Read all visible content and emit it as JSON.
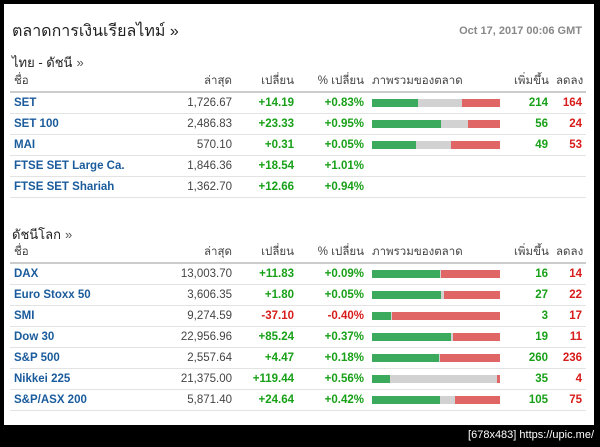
{
  "header": {
    "title": "ตลาดการเงินเรียลไทม์ »",
    "date": "Oct 17, 2017 00:06 GMT"
  },
  "thai": {
    "title": "ไทย - ดัชนี",
    "chev": "»",
    "columns": [
      "ชื่อ",
      "ล่าสุด",
      "เปลี่ยน",
      "% เปลี่ยน",
      "ภาพรวมของตลาด",
      "เพิ่มขึ้น",
      "ลดลง"
    ],
    "rows": [
      {
        "name": "SET",
        "last": "1,726.67",
        "change": "+14.19",
        "pct": "+0.83%",
        "advances": "214",
        "declines": "164",
        "breadth": {
          "up": 0.36,
          "unch": 0.34,
          "down": 0.3
        }
      },
      {
        "name": "SET 100",
        "last": "2,486.83",
        "change": "+23.33",
        "pct": "+0.95%",
        "advances": "56",
        "declines": "24",
        "breadth": {
          "up": 0.54,
          "unch": 0.21,
          "down": 0.25
        }
      },
      {
        "name": "MAI",
        "last": "570.10",
        "change": "+0.31",
        "pct": "+0.05%",
        "advances": "49",
        "declines": "53",
        "breadth": {
          "up": 0.34,
          "unch": 0.28,
          "down": 0.38
        }
      },
      {
        "name": "FTSE SET Large Ca.",
        "last": "1,846.36",
        "change": "+18.54",
        "pct": "+1.01%",
        "advances": "",
        "declines": "",
        "breadth": null
      },
      {
        "name": "FTSE SET Shariah",
        "last": "1,362.70",
        "change": "+12.66",
        "pct": "+0.94%",
        "advances": "",
        "declines": "",
        "breadth": null
      }
    ]
  },
  "world": {
    "title": "ดัชนีโลก",
    "chev": "»",
    "columns": [
      "ชื่อ",
      "ล่าสุด",
      "เปลี่ยน",
      "% เปลี่ยน",
      "ภาพรวมของตลาด",
      "เพิ่มขึ้น",
      "ลดลง"
    ],
    "rows": [
      {
        "name": "DAX",
        "last": "13,003.70",
        "change": "+11.83",
        "pct": "+0.09%",
        "advances": "16",
        "declines": "14",
        "breadth": {
          "up": 0.53,
          "unch": 0.01,
          "down": 0.46
        }
      },
      {
        "name": "Euro Stoxx 50",
        "last": "3,606.35",
        "change": "+1.80",
        "pct": "+0.05%",
        "advances": "27",
        "declines": "22",
        "breadth": {
          "up": 0.54,
          "unch": 0.02,
          "down": 0.44
        }
      },
      {
        "name": "SMI",
        "last": "9,274.59",
        "change": "-37.10",
        "pct": "-0.40%",
        "advances": "3",
        "declines": "17",
        "breadth": {
          "up": 0.15,
          "unch": 0.01,
          "down": 0.84
        }
      },
      {
        "name": "Dow 30",
        "last": "22,956.96",
        "change": "+85.24",
        "pct": "+0.37%",
        "advances": "19",
        "declines": "11",
        "breadth": {
          "up": 0.62,
          "unch": 0.01,
          "down": 0.37
        }
      },
      {
        "name": "S&P 500",
        "last": "2,557.64",
        "change": "+4.47",
        "pct": "+0.18%",
        "advances": "260",
        "declines": "236",
        "breadth": {
          "up": 0.52,
          "unch": 0.01,
          "down": 0.47
        }
      },
      {
        "name": "Nikkei 225",
        "last": "21,375.00",
        "change": "+119.44",
        "pct": "+0.56%",
        "advances": "35",
        "declines": "4",
        "breadth": {
          "up": 0.14,
          "unch": 0.84,
          "down": 0.02
        }
      },
      {
        "name": "S&P/ASX 200",
        "last": "5,871.40",
        "change": "+24.64",
        "pct": "+0.42%",
        "advances": "105",
        "declines": "75",
        "breadth": {
          "up": 0.53,
          "unch": 0.12,
          "down": 0.35
        }
      }
    ]
  },
  "colors": {
    "positive": "#18a018",
    "negative": "#d81b1b",
    "link": "#1a5b9c",
    "bar_up": "#3caa5c",
    "bar_unch": "#d2d2d2",
    "bar_down": "#e06666"
  },
  "footer": {
    "text": "[678x483] https://upic.me/"
  }
}
